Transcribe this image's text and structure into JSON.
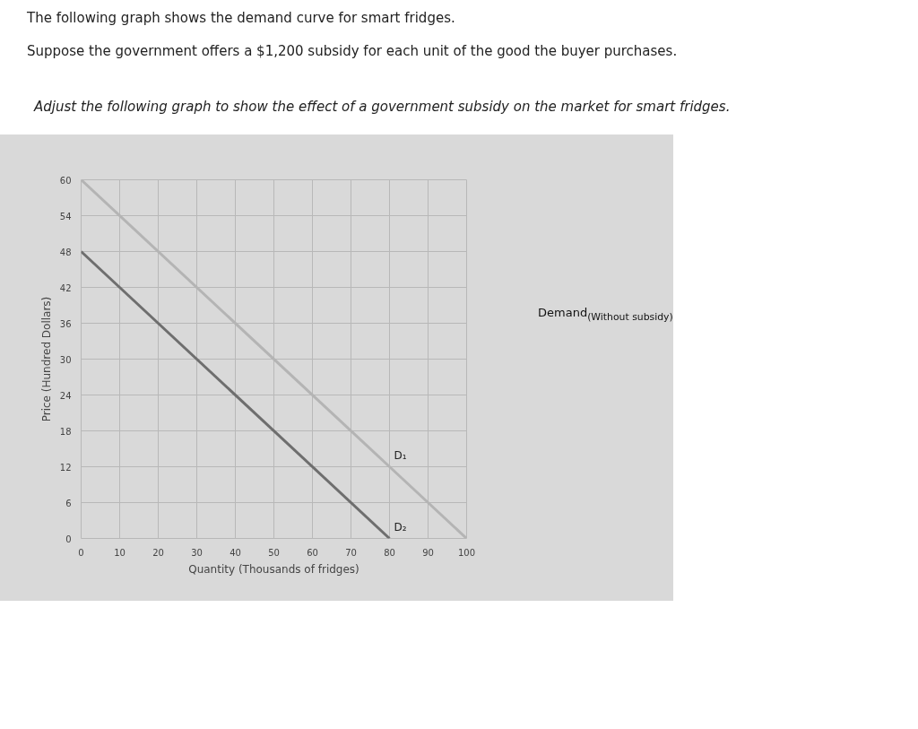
{
  "chart_data": {
    "type": "line",
    "title": "The following graph shows the demand curve for smart fridges.",
    "subtitle": "Suppose the government offers a $1,200 subsidy for each unit of the good the buyer purchases.",
    "annotations": [
      "Adjust the following graph to show the effect of a government subsidy on the market for smart fridges.",
      "Demand$_{(Without subsidy)}$"
    ],
    "xlabel": "Quantity (Thousands of fridges)",
    "ylabel": "Price (Hundred Dollars)",
    "series": [
      {
        "name": "D₁",
        "color": "#b4b4b4",
        "x": [
          0,
          80,
          100
        ],
        "values": [
          60,
          12,
          0
        ]
      },
      {
        "name": "D₂",
        "color": "#6e6e6e",
        "x": [
          0,
          80
        ],
        "values": [
          48,
          0
        ]
      }
    ],
    "xlim": [
      0,
      100
    ],
    "ylim": [
      0,
      60
    ],
    "xticks": [
      0,
      10,
      20,
      30,
      40,
      50,
      60,
      70,
      80,
      90,
      100
    ],
    "yticks": [
      0,
      6,
      12,
      18,
      24,
      30,
      36,
      42,
      48,
      54,
      60
    ],
    "grid": true,
    "marker": "none",
    "line_style": "solid"
  }
}
